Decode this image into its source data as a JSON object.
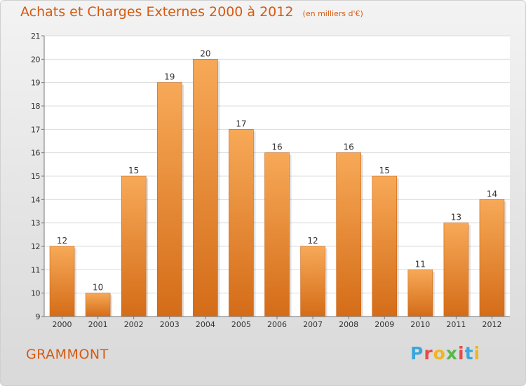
{
  "header": {
    "title": "Achats et Charges Externes 2000 à 2012",
    "subtitle": "(en milliers d'€)"
  },
  "footer": {
    "commune": "GRAMMONT",
    "brand": "Proxiti"
  },
  "colors": {
    "accent": "#d65a12",
    "bar_top": "#f7a957",
    "bar_bottom": "#d46c18",
    "brand_letters": [
      "#3aa7dc",
      "#e84a4a",
      "#f2b51f",
      "#58b849",
      "#e84a4a",
      "#3aa7dc",
      "#f2b51f"
    ]
  },
  "chart_data": {
    "type": "bar",
    "title": "Achats et Charges Externes 2000 à 2012",
    "subtitle": "(en milliers d'€)",
    "categories": [
      "2000",
      "2001",
      "2002",
      "2003",
      "2004",
      "2005",
      "2006",
      "2007",
      "2008",
      "2009",
      "2010",
      "2011",
      "2012"
    ],
    "values": [
      12,
      10,
      15,
      19,
      20,
      17,
      16,
      12,
      16,
      15,
      11,
      13,
      14
    ],
    "ylim": [
      9,
      21
    ],
    "yticks": [
      9,
      10,
      11,
      12,
      13,
      14,
      15,
      16,
      17,
      18,
      19,
      20,
      21
    ],
    "grid": true,
    "legend": "none",
    "data_labels": true
  }
}
